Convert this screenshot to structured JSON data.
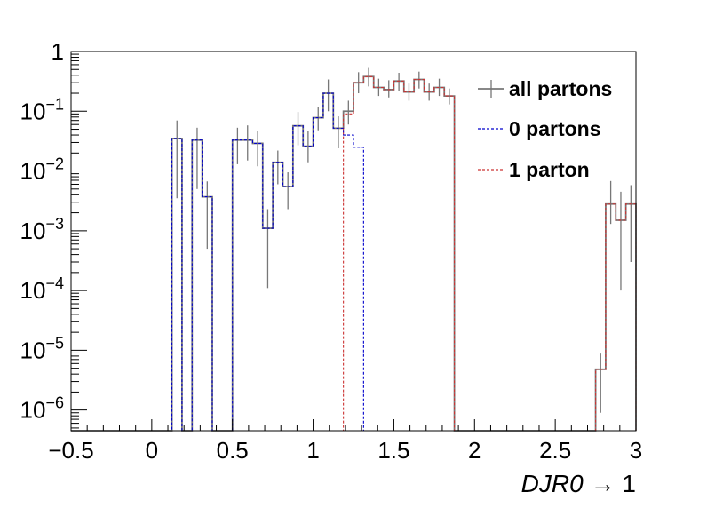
{
  "chart_data": {
    "type": "line",
    "title": "",
    "xlabel": "DJR0 → 1",
    "xlabel_italic_part": "DJR0",
    "xlabel_suffix": "→ 1",
    "ylabel": "",
    "xlim": [
      -0.5,
      3.0
    ],
    "ylim": [
      4.5e-07,
      1.0
    ],
    "yscale": "log",
    "grid": false,
    "legend_position": "top-right",
    "bin_width": 0.0625,
    "x_ticks": [
      "−0.5",
      "0",
      "0.5",
      "1",
      "1.5",
      "2",
      "2.5",
      "3"
    ],
    "y_ticks": [
      {
        "value": 1,
        "base": "1",
        "exp": ""
      },
      {
        "value": 0.1,
        "base": "10",
        "exp": "−1"
      },
      {
        "value": 0.01,
        "base": "10",
        "exp": "−2"
      },
      {
        "value": 0.001,
        "base": "10",
        "exp": "−3"
      },
      {
        "value": 0.0001,
        "base": "10",
        "exp": "−4"
      },
      {
        "value": 1e-05,
        "base": "10",
        "exp": "−5"
      },
      {
        "value": 1e-06,
        "base": "10",
        "exp": "−6"
      }
    ],
    "bin_edges": [
      -0.5,
      -0.4375,
      -0.375,
      -0.3125,
      -0.25,
      -0.1875,
      -0.125,
      -0.0625,
      0.0,
      0.0625,
      0.125,
      0.1875,
      0.25,
      0.3125,
      0.375,
      0.4375,
      0.5,
      0.5625,
      0.625,
      0.6875,
      0.75,
      0.8125,
      0.875,
      0.9375,
      1.0,
      1.0625,
      1.125,
      1.1875,
      1.25,
      1.3125,
      1.375,
      1.4375,
      1.5,
      1.5625,
      1.625,
      1.6875,
      1.75,
      1.8125,
      1.875,
      1.9375,
      2.0,
      2.0625,
      2.125,
      2.1875,
      2.25,
      2.3125,
      2.375,
      2.4375,
      2.5,
      2.5625,
      2.625,
      2.6875,
      2.75,
      2.8125,
      2.875,
      2.9375,
      3.0
    ],
    "series": [
      {
        "name": "all partons",
        "color": "#777777",
        "dash": "solid",
        "values": [
          0,
          0,
          0,
          0,
          0,
          0,
          0,
          0,
          0,
          0,
          0.035,
          0,
          0.033,
          0.0037,
          0,
          0,
          0.033,
          0.033,
          0.029,
          0.0011,
          0.014,
          0.0055,
          0.057,
          0.026,
          0.078,
          0.2,
          0.052,
          0.1,
          0.3,
          0.38,
          0.25,
          0.23,
          0.32,
          0.21,
          0.34,
          0.21,
          0.25,
          0.18,
          0,
          0,
          0,
          0,
          0,
          0,
          0,
          0,
          0,
          0,
          0,
          0,
          0,
          0,
          4.8e-06,
          0.0028,
          0.0015,
          0.0028,
          0
        ],
        "errors_low": [
          0,
          0,
          0,
          0,
          0,
          0,
          0,
          0,
          0,
          0,
          0.0315,
          0,
          0.028,
          0.0032,
          0,
          0,
          0.02,
          0.018,
          0.017,
          0.00099,
          0.008,
          0.0032,
          0.03,
          0.012,
          0.03,
          0.1,
          0.028,
          0.04,
          0.1,
          0.12,
          0.07,
          0.06,
          0.1,
          0.06,
          0.1,
          0.06,
          0.07,
          0.05,
          0,
          0,
          0,
          0,
          0,
          0,
          0,
          0,
          0,
          0,
          0,
          0,
          0,
          0,
          3.9e-06,
          0.0015,
          0.0014,
          0.0025,
          0
        ],
        "errors_high": [
          0,
          0,
          0,
          0,
          0,
          0,
          0,
          0,
          0,
          0,
          0.035,
          0,
          0.02,
          0.003,
          0,
          0,
          0.02,
          0.025,
          0.017,
          0.0012,
          0.008,
          0.004,
          0.04,
          0.02,
          0.04,
          0.14,
          0.03,
          0.05,
          0.15,
          0.15,
          0.1,
          0.1,
          0.12,
          0.08,
          0.12,
          0.08,
          0.1,
          0.06,
          0,
          0,
          0,
          0,
          0,
          0,
          0,
          0,
          0,
          0,
          0,
          0,
          0,
          0,
          4e-06,
          0.004,
          0.003,
          0.003,
          0
        ]
      },
      {
        "name": "0 partons",
        "color": "#0000cc",
        "dash": "dashed",
        "values": [
          0,
          0,
          0,
          0,
          0,
          0,
          0,
          0,
          0,
          0,
          0.035,
          0,
          0.033,
          0.0037,
          0,
          0,
          0.033,
          0.033,
          0.029,
          0.0011,
          0.014,
          0.0055,
          0.057,
          0.026,
          0.078,
          0.2,
          0.052,
          0.04,
          0.025,
          0,
          0,
          0,
          0,
          0,
          0,
          0,
          0,
          0,
          0,
          0,
          0,
          0,
          0,
          0,
          0,
          0,
          0,
          0,
          0,
          0,
          0,
          0,
          0,
          0,
          0,
          0,
          0
        ]
      },
      {
        "name": "1 parton",
        "color": "#cc3333",
        "dash": "dashed",
        "values": [
          0,
          0,
          0,
          0,
          0,
          0,
          0,
          0,
          0,
          0,
          0,
          0,
          0,
          0,
          0,
          0,
          0,
          0,
          0,
          0,
          0,
          0,
          0,
          0,
          0,
          0,
          0,
          0.09,
          0.3,
          0.38,
          0.25,
          0.23,
          0.32,
          0.21,
          0.34,
          0.21,
          0.25,
          0.18,
          0,
          0,
          0,
          0,
          0,
          0,
          0,
          0,
          0,
          0,
          0,
          0,
          0,
          0,
          4.8e-06,
          0.0028,
          0.0015,
          0.0028,
          0
        ]
      }
    ]
  }
}
